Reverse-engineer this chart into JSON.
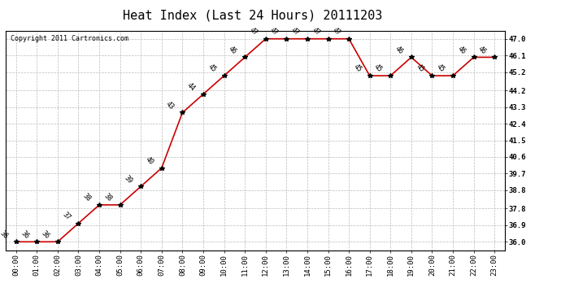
{
  "title": "Heat Index (Last 24 Hours) 20111203",
  "copyright": "Copyright 2011 Cartronics.com",
  "x_labels": [
    "00:00",
    "01:00",
    "02:00",
    "03:00",
    "04:00",
    "05:00",
    "06:00",
    "07:00",
    "08:00",
    "09:00",
    "10:00",
    "11:00",
    "12:00",
    "13:00",
    "14:00",
    "15:00",
    "16:00",
    "17:00",
    "18:00",
    "19:00",
    "20:00",
    "21:00",
    "22:00",
    "23:00"
  ],
  "y_values": [
    36,
    36,
    36,
    37,
    38,
    38,
    39,
    40,
    43,
    44,
    45,
    46,
    47,
    47,
    47,
    47,
    47,
    45,
    45,
    46,
    45,
    45,
    46,
    46
  ],
  "y_labels": [
    36.0,
    36.9,
    37.8,
    38.8,
    39.7,
    40.6,
    41.5,
    42.4,
    43.3,
    44.2,
    45.2,
    46.1,
    47.0
  ],
  "ylim": [
    35.55,
    47.45
  ],
  "line_color": "#cc0000",
  "marker": "*",
  "marker_color": "black",
  "marker_size": 4,
  "bg_color": "#ffffff",
  "grid_color": "#bbbbbb",
  "title_fontsize": 11,
  "label_fontsize": 6.5,
  "annotation_fontsize": 6,
  "copyright_fontsize": 6
}
